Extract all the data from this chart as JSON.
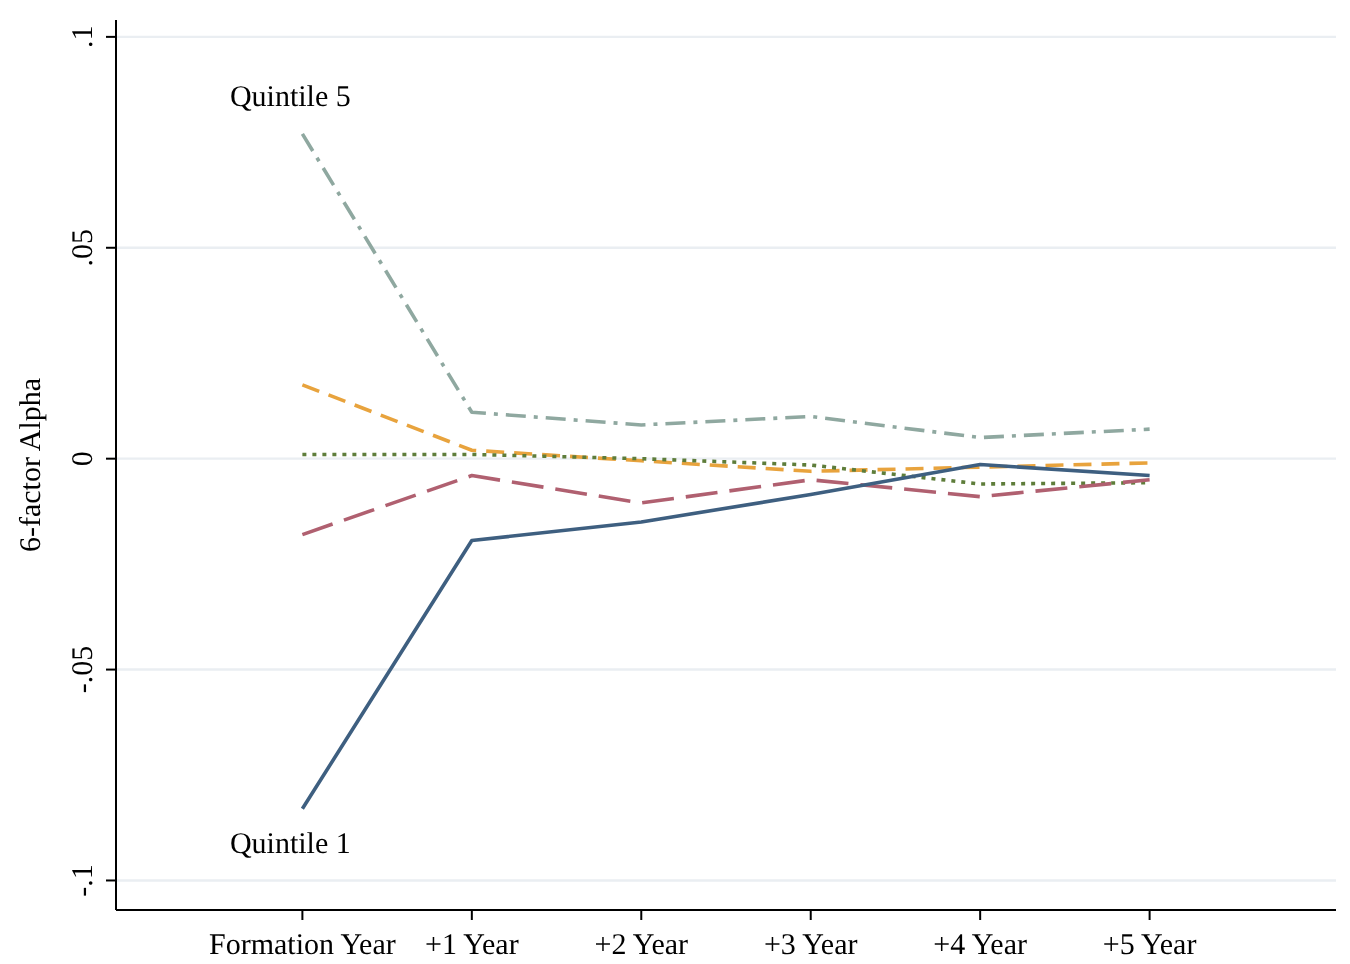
{
  "chart_data": {
    "type": "line",
    "ylabel": "6-factor Alpha",
    "categories": [
      "Formation Year",
      "+1 Year",
      "+2 Year",
      "+3 Year",
      "+4 Year",
      "+5 Year"
    ],
    "ylim": [
      -0.107,
      0.104
    ],
    "yticks": [
      {
        "value": -0.1,
        "label": "-.1"
      },
      {
        "value": -0.05,
        "label": "-.05"
      },
      0,
      {
        "value": 0.05,
        "label": ".05"
      },
      {
        "value": 0.1,
        "label": ".1"
      }
    ],
    "grid": "y",
    "series": [
      {
        "name": "Quintile 5",
        "color": "#8fa8a0",
        "line_style": "dashdot",
        "values": [
          0.077,
          0.011,
          0.008,
          0.01,
          0.005,
          0.007
        ]
      },
      {
        "color": "#e8a33d",
        "line_style": "dashed",
        "values": [
          0.0175,
          0.002,
          -0.0005,
          -0.003,
          -0.002,
          -0.001
        ]
      },
      {
        "color": "#5e7d3a",
        "line_style": "dotted",
        "values": [
          0.001,
          0.001,
          0,
          -0.0015,
          -0.006,
          -0.0057
        ]
      },
      {
        "color": "#b06070",
        "line_style": "longdash",
        "values": [
          -0.018,
          -0.004,
          -0.0105,
          -0.005,
          -0.009,
          -0.005
        ]
      },
      {
        "name": "Quintile 1",
        "color": "#3e5f80",
        "line_style": "solid",
        "values": [
          -0.083,
          -0.0194,
          -0.015,
          -0.0085,
          -0.0014,
          -0.004
        ]
      }
    ]
  }
}
